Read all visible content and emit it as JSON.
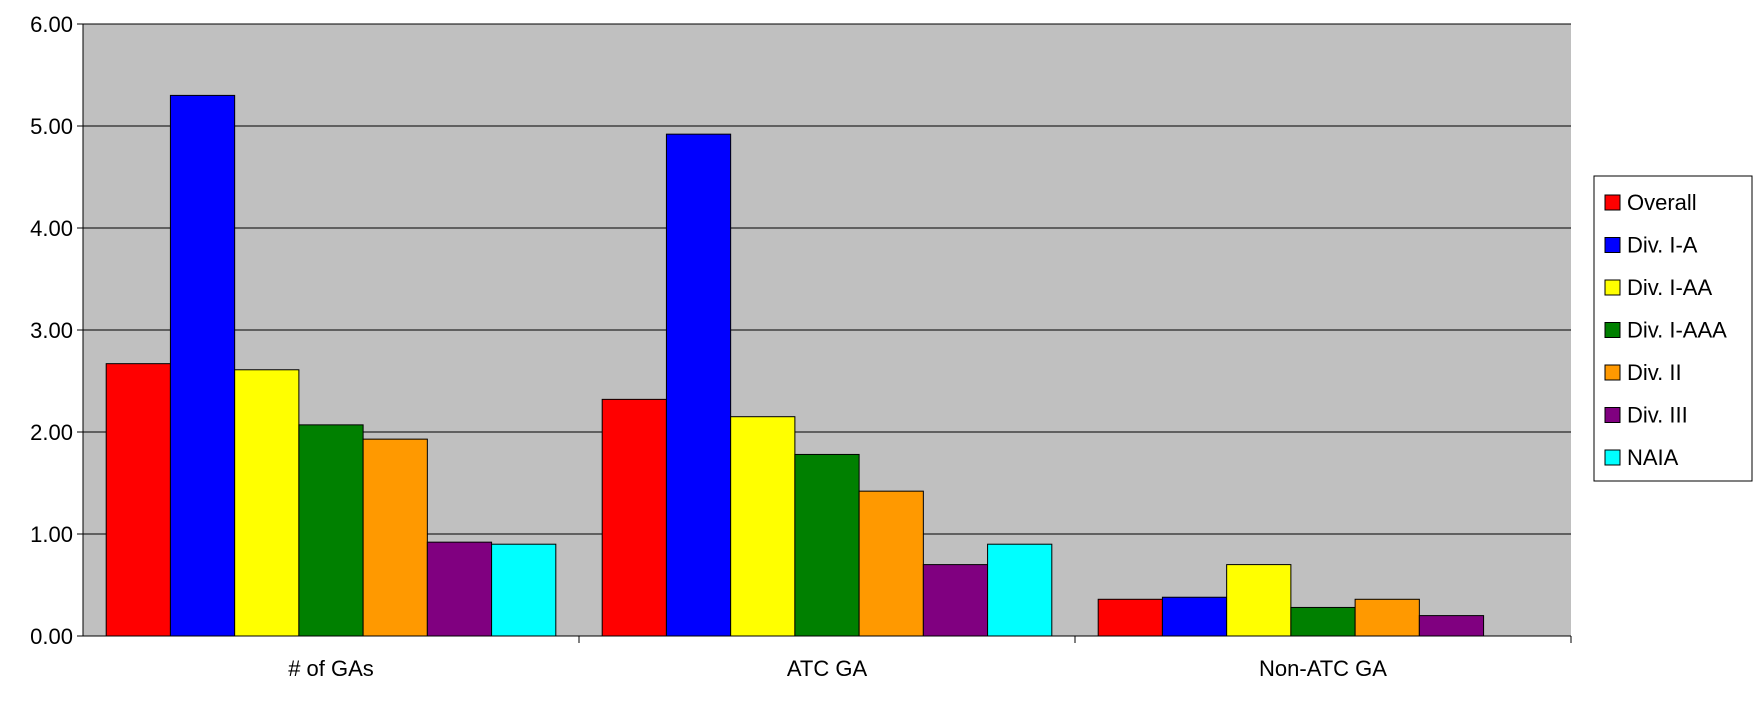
{
  "chart_data": {
    "type": "bar",
    "categories": [
      "# of GAs",
      "ATC GA",
      "Non-ATC GA"
    ],
    "series": [
      {
        "name": "Overall",
        "color": "#ff0000",
        "values": [
          2.67,
          2.32,
          0.36
        ]
      },
      {
        "name": "Div. I-A",
        "color": "#0000ff",
        "values": [
          5.3,
          4.92,
          0.38
        ]
      },
      {
        "name": "Div. I-AA",
        "color": "#ffff00",
        "values": [
          2.61,
          2.15,
          0.7
        ]
      },
      {
        "name": "Div. I-AAA",
        "color": "#008000",
        "values": [
          2.07,
          1.78,
          0.28
        ]
      },
      {
        "name": "Div. II",
        "color": "#ff9900",
        "values": [
          1.93,
          1.42,
          0.36
        ]
      },
      {
        "name": "Div. III",
        "color": "#800080",
        "values": [
          0.92,
          0.7,
          0.2
        ]
      },
      {
        "name": "NAIA",
        "color": "#00ffff",
        "values": [
          0.9,
          0.9,
          null
        ]
      }
    ],
    "y_ticks": [
      "0.00",
      "1.00",
      "2.00",
      "3.00",
      "4.00",
      "5.00",
      "6.00"
    ],
    "ylim": [
      0,
      6
    ],
    "grid": true,
    "plot_background": "#c0c0c0",
    "legend_position": "right"
  }
}
